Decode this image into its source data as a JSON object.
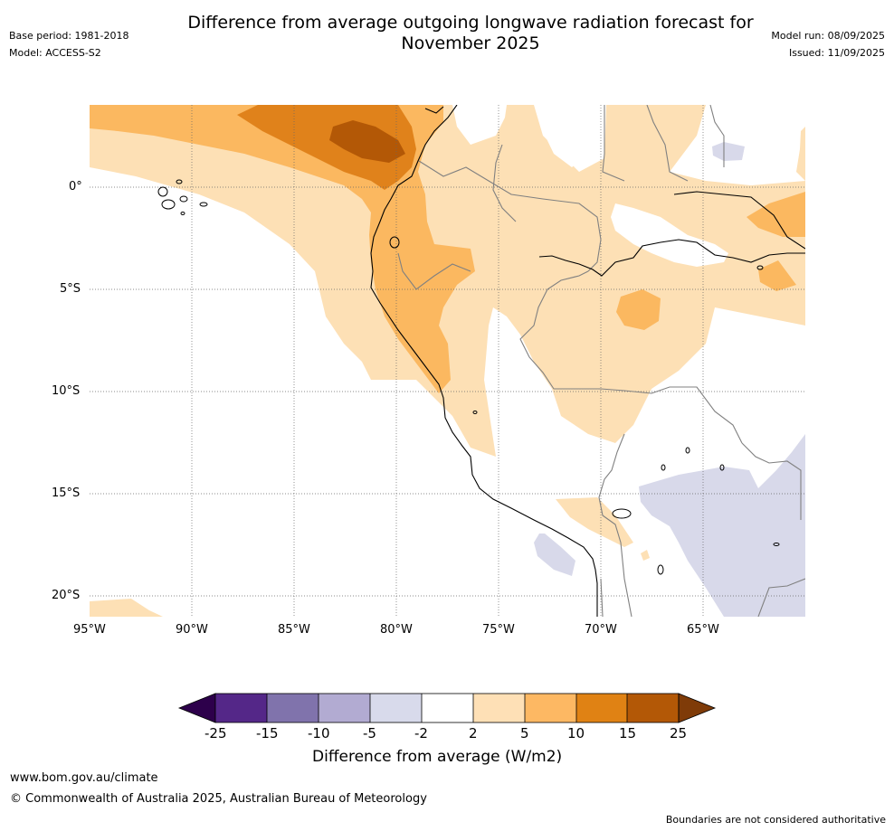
{
  "header": {
    "title_line1": "Difference from average outgoing longwave radiation forecast for",
    "title_line2": "November 2025",
    "base_period": "Base period: 1981-2018",
    "model": "Model: ACCESS-S2",
    "model_run": "Model run: 08/09/2025",
    "issued": "Issued: 11/09/2025"
  },
  "map": {
    "lat_labels": [
      "0°",
      "5°S",
      "10°S",
      "15°S",
      "20°S"
    ],
    "lon_labels": [
      "95°W",
      "90°W",
      "85°W",
      "80°W",
      "75°W",
      "70°W",
      "65°W"
    ],
    "colors": {
      "ocean_positive_light": "#fde0b5",
      "positive_mid": "#fbb860",
      "positive_strong": "#e0821b",
      "positive_max": "#b35806",
      "negative_light": "#d8d9ea",
      "coast": "#000000",
      "border": "#808080",
      "grid": "#666666"
    }
  },
  "colorbar": {
    "labels": [
      "-25",
      "-15",
      "-10",
      "-5",
      "-2",
      "2",
      "5",
      "10",
      "15",
      "25"
    ],
    "colors": [
      "#2d004b",
      "#542788",
      "#8073ac",
      "#b2abd2",
      "#d8daeb",
      "#ffffff",
      "#fee0b6",
      "#fdb863",
      "#e08214",
      "#b35806",
      "#7f3b08"
    ],
    "title": "Difference from average (W/m2)"
  },
  "footer": {
    "website": "www.bom.gov.au/climate",
    "copyright": "© Commonwealth of Australia 2025, Australian Bureau of Meteorology",
    "disclaimer": "Boundaries are not considered authoritative"
  }
}
